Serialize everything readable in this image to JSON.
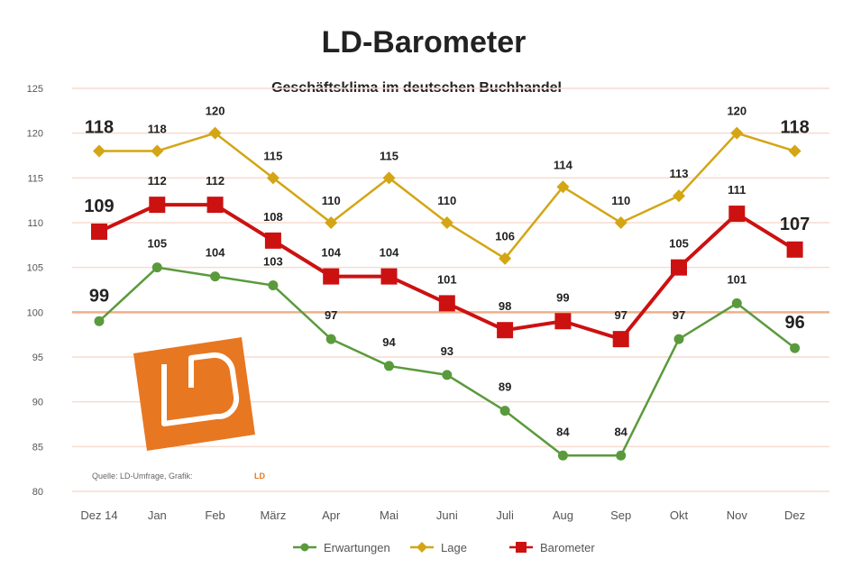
{
  "chart_data": {
    "type": "line",
    "title": "LD-Barometer",
    "subtitle": "Geschäftsklima im deutschen Buchhandel",
    "categories": [
      "Dez 14",
      "Jan",
      "Feb",
      "März",
      "Apr",
      "Mai",
      "Juni",
      "Juli",
      "Aug",
      "Sep",
      "Okt",
      "Nov",
      "Dez"
    ],
    "ylim": [
      80,
      125
    ],
    "yticks": [
      80,
      85,
      90,
      95,
      100,
      105,
      110,
      115,
      120,
      125
    ],
    "reference_line": 100,
    "grid": true,
    "legend_position": "bottom",
    "series": [
      {
        "name": "Erwartungen",
        "color": "#5a9a3c",
        "marker": "circle",
        "values": [
          99,
          105,
          104,
          103,
          97,
          94,
          93,
          89,
          84,
          84,
          97,
          101,
          96
        ]
      },
      {
        "name": "Lage",
        "color": "#d4a514",
        "marker": "diamond",
        "values": [
          118,
          118,
          120,
          115,
          110,
          115,
          110,
          106,
          114,
          110,
          113,
          120,
          118
        ]
      },
      {
        "name": "Barometer",
        "color": "#cc1111",
        "marker": "square",
        "values": [
          109,
          112,
          112,
          108,
          104,
          104,
          101,
          98,
          99,
          97,
          105,
          111,
          107
        ]
      }
    ]
  },
  "source": {
    "text": "Quelle: LD-Umfrage, Grafik:",
    "brand": "LD"
  },
  "logo": {
    "color": "#e87722",
    "letters": "LD"
  }
}
